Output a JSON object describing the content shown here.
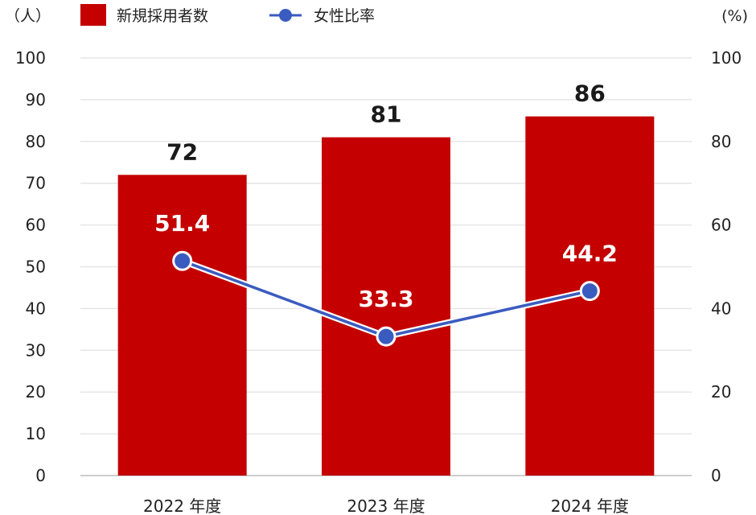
{
  "chart_data": {
    "type": "bar",
    "categories": [
      "2022 年度",
      "2023 年度",
      "2024 年度"
    ],
    "series": [
      {
        "name": "新規採用者数",
        "type": "bar",
        "axis": "left",
        "color": "#c40000",
        "values": [
          72,
          81,
          86
        ]
      },
      {
        "name": "女性比率",
        "type": "line",
        "axis": "right",
        "color": "#3a5bbf",
        "values": [
          51.4,
          33.3,
          44.2
        ]
      }
    ],
    "y_left": {
      "unit": "（人）",
      "lim": [
        0,
        100
      ],
      "ticks": [
        0,
        10,
        20,
        30,
        40,
        50,
        60,
        70,
        80,
        90,
        100
      ]
    },
    "y_right": {
      "unit": "(%)",
      "lim": [
        0,
        100
      ],
      "ticks": [
        0,
        20,
        40,
        60,
        80,
        100
      ]
    },
    "grid": true,
    "legend_position": "top"
  }
}
